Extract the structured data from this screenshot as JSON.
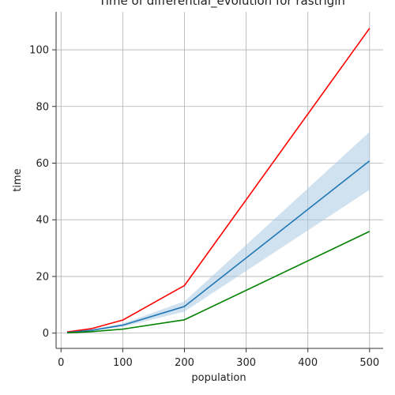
{
  "chart_data": {
    "type": "line",
    "title": "Time of differential_evolution for rastrigin",
    "xlabel": "population",
    "ylabel": "time",
    "xlim": [
      -8,
      522
    ],
    "ylim": [
      -5.4,
      113.4
    ],
    "xticks": [
      0,
      100,
      200,
      300,
      400,
      500
    ],
    "yticks": [
      0,
      20,
      40,
      60,
      80,
      100
    ],
    "grid": true,
    "x": [
      10,
      50,
      100,
      200,
      500
    ],
    "series": [
      {
        "color": "#ff0000",
        "values": [
          0.4,
          1.6,
          4.6,
          16.8,
          107.6
        ]
      },
      {
        "color": "#1f77b4",
        "values": [
          0.2,
          1.0,
          2.8,
          9.4,
          60.8
        ],
        "band_lower": [
          0.1,
          0.7,
          2.2,
          7.6,
          50.6
        ],
        "band_upper": [
          0.3,
          1.3,
          3.4,
          11.2,
          71.0
        ],
        "band_color": "#aac8e4"
      },
      {
        "color": "#008000",
        "values": [
          0.1,
          0.5,
          1.4,
          4.7,
          35.9
        ]
      }
    ]
  }
}
